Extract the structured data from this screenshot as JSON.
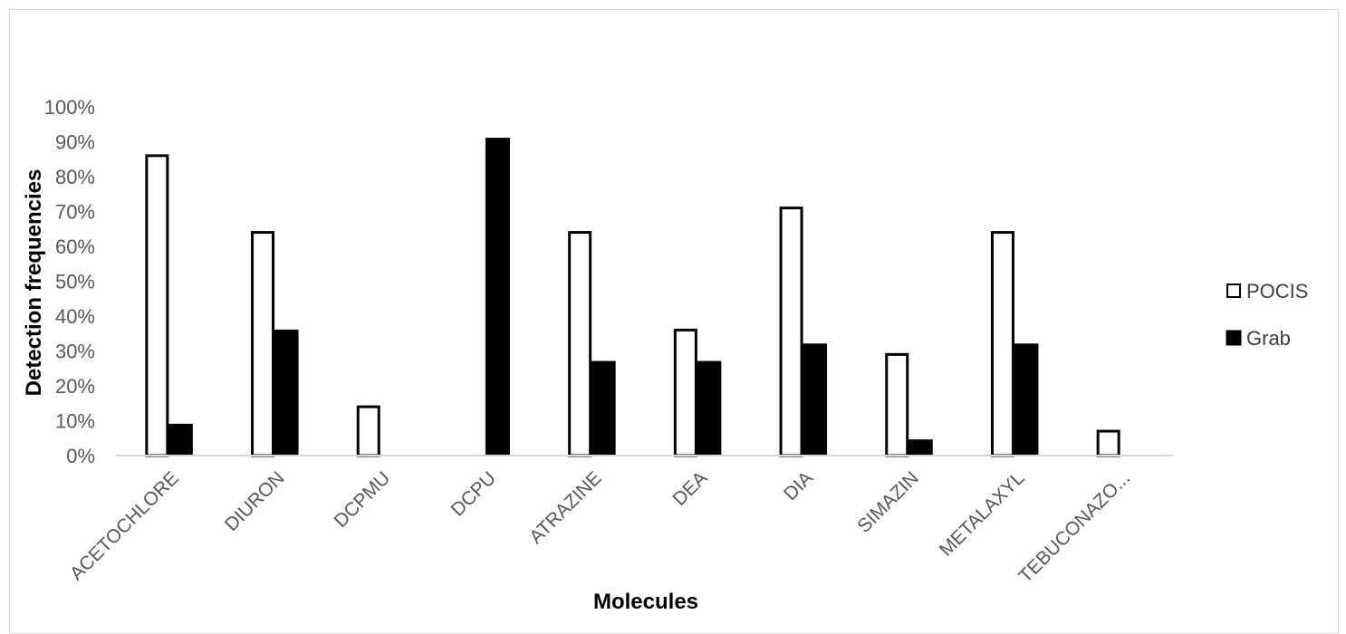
{
  "chart_data": {
    "type": "bar",
    "title": "",
    "xlabel": "Molecules",
    "ylabel": "Detection frequencies",
    "ylim": [
      0,
      100
    ],
    "yticks": [
      "0%",
      "10%",
      "20%",
      "30%",
      "40%",
      "50%",
      "60%",
      "70%",
      "80%",
      "90%",
      "100%"
    ],
    "grid": false,
    "legend_position": "right",
    "categories": [
      "ACETOCHLORE",
      "DIURON",
      "DCPMU",
      "DCPU",
      "ATRAZINE",
      "DEA",
      "DIA",
      "SIMAZIN",
      "METALAXYL",
      "TEBUCONAZO..."
    ],
    "series": [
      {
        "name": "POCIS",
        "color": "#ffffff",
        "stroke": "#000000",
        "values": [
          86,
          64,
          14,
          0,
          64,
          36,
          71,
          29,
          64,
          7
        ]
      },
      {
        "name": "Grab",
        "color": "#000000",
        "stroke": "#000000",
        "values": [
          9,
          36,
          0,
          91,
          27,
          27,
          32,
          4.5,
          32,
          0
        ]
      }
    ]
  }
}
